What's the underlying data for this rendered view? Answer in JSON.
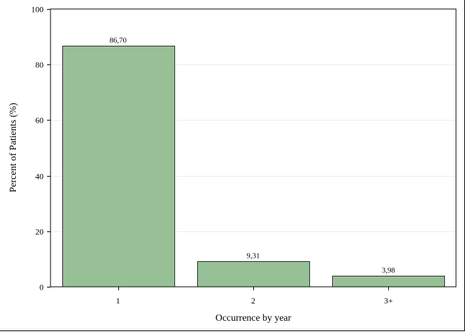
{
  "chart_data": {
    "type": "bar",
    "title": "",
    "xlabel": "Occurrence by year",
    "ylabel": "Percent of Patients (%)",
    "categories": [
      "1",
      "2",
      "3+"
    ],
    "values": [
      86.7,
      9.31,
      3.98
    ],
    "data_labels": [
      "86,70",
      "9,31",
      "3,98"
    ],
    "ylim": [
      0,
      100
    ],
    "yticks": [
      0,
      20,
      40,
      60,
      80,
      100
    ],
    "ytick_labels": [
      "0",
      "20",
      "40",
      "60",
      "80",
      "100"
    ],
    "grid": true,
    "legend": "none",
    "colors": {
      "bar_fill": "#97c096",
      "bar_stroke": "#2b2b2b",
      "grid": "#ececec",
      "axis": "#000000"
    }
  }
}
